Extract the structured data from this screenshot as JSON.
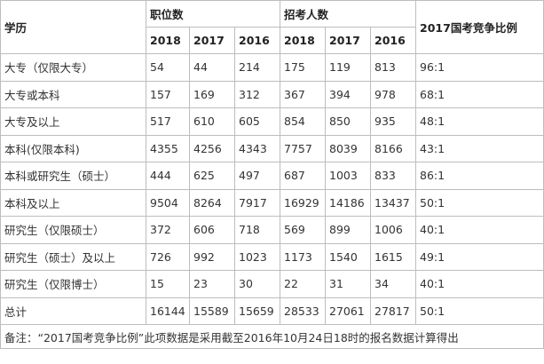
{
  "header": {
    "education_label": "学历",
    "positions_label": "职位数",
    "recruits_label": "招考人数",
    "ratio_label": "2017国考竞争比例",
    "years": [
      "2018",
      "2017",
      "2016"
    ]
  },
  "rows": [
    {
      "edu": "大专（仅限大专）",
      "p2018": "54",
      "p2017": "44",
      "p2016": "214",
      "r2018": "175",
      "r2017": "119",
      "r2016": "813",
      "ratio": "96:1"
    },
    {
      "edu": "大专或本科",
      "p2018": "157",
      "p2017": "169",
      "p2016": "312",
      "r2018": "367",
      "r2017": "394",
      "r2016": "978",
      "ratio": "68:1"
    },
    {
      "edu": "大专及以上",
      "p2018": "517",
      "p2017": "610",
      "p2016": "605",
      "r2018": "854",
      "r2017": "850",
      "r2016": "935",
      "ratio": "48:1"
    },
    {
      "edu": "本科(仅限本科)",
      "p2018": "4355",
      "p2017": "4256",
      "p2016": "4343",
      "r2018": "7757",
      "r2017": "8039",
      "r2016": "8166",
      "ratio": "43:1"
    },
    {
      "edu": "本科或研究生（硕士）",
      "p2018": "444",
      "p2017": "625",
      "p2016": "497",
      "r2018": "687",
      "r2017": "1003",
      "r2016": "833",
      "ratio": "86:1"
    },
    {
      "edu": "本科及以上",
      "p2018": "9504",
      "p2017": "8264",
      "p2016": "7917",
      "r2018": "16929",
      "r2017": "14186",
      "r2016": "13437",
      "ratio": "50:1"
    },
    {
      "edu": "研究生（仅限硕士）",
      "p2018": "372",
      "p2017": "606",
      "p2016": "718",
      "r2018": "569",
      "r2017": "899",
      "r2016": "1006",
      "ratio": "40:1"
    },
    {
      "edu": "研究生（硕士）及以上",
      "p2018": "726",
      "p2017": "992",
      "p2016": "1023",
      "r2018": "1173",
      "r2017": "1540",
      "r2016": "1615",
      "ratio": "49:1"
    },
    {
      "edu": "研究生（仅限博士）",
      "p2018": "15",
      "p2017": "23",
      "p2016": "30",
      "r2018": "22",
      "r2017": "31",
      "r2016": "34",
      "ratio": "40:1"
    },
    {
      "edu": "总计",
      "p2018": "16144",
      "p2017": "15589",
      "p2016": "15659",
      "r2018": "28533",
      "r2017": "27061",
      "r2016": "27817",
      "ratio": "50:1"
    }
  ],
  "note": "备注：“2017国考竞争比例”此项数据是采用截至2016年10月24日18时的报名数据计算得出",
  "colors": {
    "border": "#bdbdbd",
    "text": "#333333",
    "background": "#ffffff"
  }
}
